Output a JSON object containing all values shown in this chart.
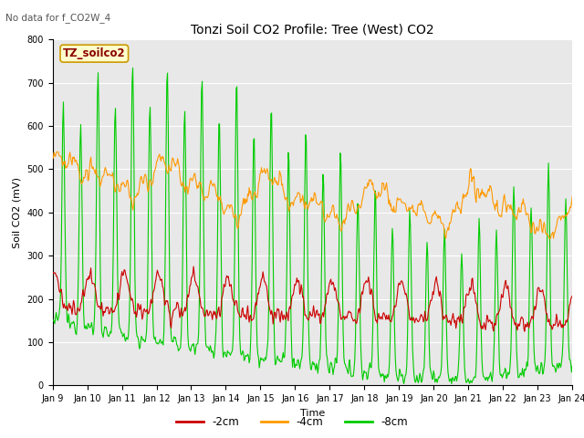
{
  "title": "Tonzi Soil CO2 Profile: Tree (West) CO2",
  "subtitle": "No data for f_CO2W_4",
  "ylabel": "Soil CO2 (mV)",
  "xlabel": "Time",
  "legend_label": "TZ_soilco2",
  "series_labels": [
    "-2cm",
    "-4cm",
    "-8cm"
  ],
  "series_colors": [
    "#cc0000",
    "#ff9900",
    "#00cc00"
  ],
  "ylim": [
    0,
    800
  ],
  "yticks": [
    0,
    100,
    200,
    300,
    400,
    500,
    600,
    700,
    800
  ],
  "xtick_labels": [
    "Jan 9",
    "Jan 10",
    "Jan 11",
    "Jan 12",
    "Jan 13",
    "Jan 14",
    "Jan 15",
    "Jan 16",
    "Jan 17",
    "Jan 18",
    "Jan 19",
    "Jan 20",
    "Jan 21",
    "Jan 22",
    "Jan 23",
    "Jan 24"
  ],
  "bg_color": "#e8e8e8",
  "fig_bg": "#ffffff",
  "linewidth": 0.8,
  "grid_color": "#ffffff",
  "title_fontsize": 10,
  "tick_fontsize": 7,
  "label_fontsize": 8
}
